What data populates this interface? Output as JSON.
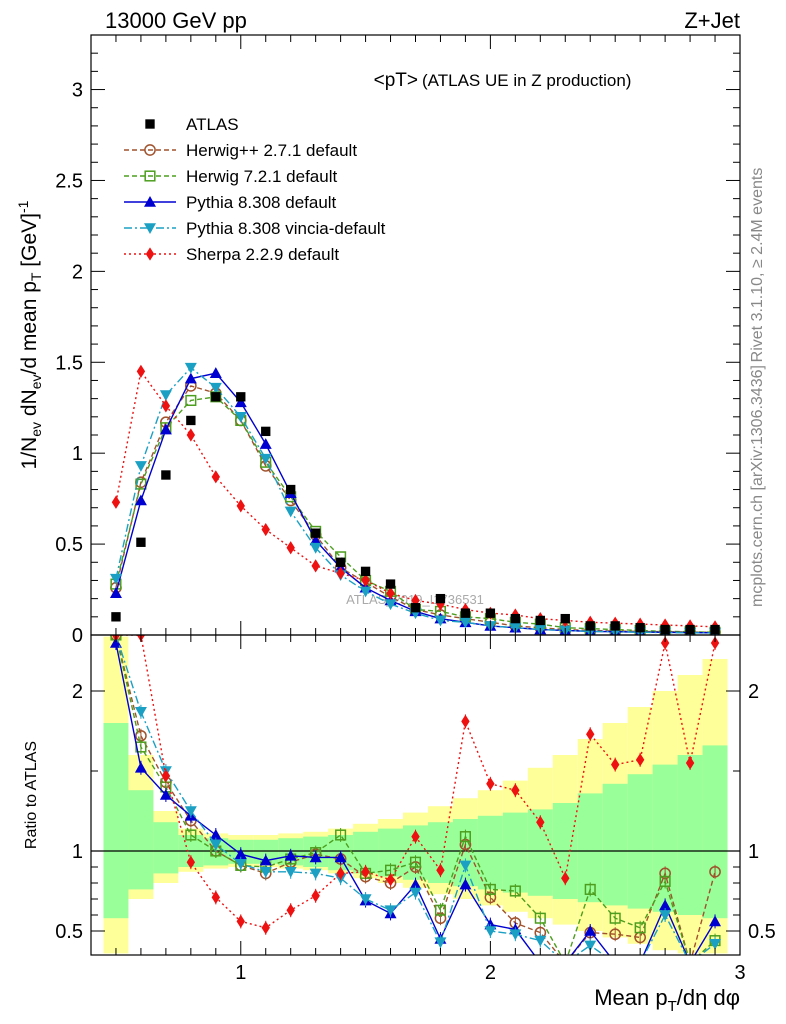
{
  "header": {
    "energy_label": "13000 GeV pp",
    "process_label": "Z+Jet"
  },
  "side": {
    "rivet_label": "Rivet 3.1.10, ≥ 2.4M events",
    "mcplots_label": "mcplots.cern.ch [arXiv:1306.3436]"
  },
  "watermark": "ATLAS_2019_I1736531",
  "chart_data": {
    "type": "line",
    "title": "<pT>",
    "subtitle": "(ATLAS UE in Z production)",
    "xlabel": "Mean p_T/dη dφ",
    "ylabel": "1/N_ev dN_ev/d mean p_T [GeV]^-1",
    "ratio_ylabel": "Ratio to ATLAS",
    "xlim": [
      0.4,
      3.0
    ],
    "ylim": [
      0,
      3.3
    ],
    "ratio_ylim": [
      0.35,
      2.35
    ],
    "x_ticks": [
      1,
      2,
      3
    ],
    "y_ticks": [
      0,
      0.5,
      1,
      1.5,
      2,
      2.5,
      3
    ],
    "ratio_ticks": [
      0.5,
      1,
      2
    ],
    "x": [
      0.5,
      0.6,
      0.7,
      0.8,
      0.9,
      1.0,
      1.1,
      1.2,
      1.3,
      1.4,
      1.5,
      1.6,
      1.7,
      1.8,
      1.9,
      2.0,
      2.1,
      2.2,
      2.3,
      2.4,
      2.5,
      2.6,
      2.7,
      2.8,
      2.9
    ],
    "data": {
      "name": "ATLAS",
      "values": [
        0.1,
        0.51,
        0.88,
        1.18,
        1.31,
        1.31,
        1.12,
        0.8,
        0.56,
        0.4,
        0.35,
        0.28,
        0.15,
        0.2,
        0.12,
        0.12,
        0.09,
        0.08,
        0.09,
        0.05,
        0.05,
        0.04,
        0.03,
        0.03,
        0.03
      ],
      "band_inner": [
        0.58,
        0.76,
        0.86,
        0.9,
        0.91,
        0.92,
        0.92,
        0.91,
        0.9,
        0.88,
        0.86,
        0.84,
        0.82,
        0.8,
        0.78,
        0.76,
        0.74,
        0.72,
        0.7,
        0.68,
        0.66,
        0.64,
        0.62,
        0.6,
        0.58
      ],
      "band_outer": [
        0.35,
        0.7,
        0.8,
        0.87,
        0.89,
        0.9,
        0.9,
        0.89,
        0.88,
        0.86,
        0.83,
        0.8,
        0.77,
        0.73,
        0.7,
        0.66,
        0.62,
        0.58,
        0.54,
        0.5,
        0.46,
        0.42,
        0.38,
        0.34,
        0.3
      ],
      "band_inner_hi": [
        1.8,
        1.38,
        1.18,
        1.1,
        1.08,
        1.07,
        1.07,
        1.08,
        1.09,
        1.1,
        1.12,
        1.14,
        1.16,
        1.18,
        1.2,
        1.22,
        1.24,
        1.26,
        1.3,
        1.36,
        1.42,
        1.48,
        1.54,
        1.6,
        1.66
      ],
      "band_outer_hi": [
        2.35,
        1.6,
        1.25,
        1.14,
        1.11,
        1.1,
        1.1,
        1.11,
        1.12,
        1.14,
        1.17,
        1.2,
        1.24,
        1.28,
        1.33,
        1.38,
        1.44,
        1.52,
        1.6,
        1.7,
        1.8,
        1.9,
        2.0,
        2.1,
        2.2
      ]
    },
    "series": [
      {
        "name": "Herwig++ 2.7.1 default",
        "color": "#a0522d",
        "dash": "5,3",
        "marker": "circle-open",
        "values": [
          0.26,
          0.84,
          1.17,
          1.37,
          1.33,
          1.18,
          0.93,
          0.74,
          0.55,
          0.37,
          0.29,
          0.21,
          0.14,
          0.11,
          0.09,
          0.07,
          0.05,
          0.04,
          0.03,
          0.025,
          0.022,
          0.02,
          0.018,
          0.016,
          0.015
        ]
      },
      {
        "name": "Herwig 7.2.1 default",
        "color": "#4d9e1e",
        "dash": "5,3",
        "marker": "square-open",
        "values": [
          0.28,
          0.83,
          1.14,
          1.29,
          1.31,
          1.18,
          0.95,
          0.76,
          0.57,
          0.43,
          0.3,
          0.24,
          0.14,
          0.13,
          0.1,
          0.09,
          0.07,
          0.06,
          0.04,
          0.035,
          0.03,
          0.025,
          0.02,
          0.018,
          0.015
        ]
      },
      {
        "name": "Pythia 8.308 default",
        "color": "#0000d0",
        "dash": "",
        "marker": "triangle-up",
        "values": [
          0.23,
          0.74,
          1.13,
          1.41,
          1.44,
          1.28,
          1.05,
          0.78,
          0.52,
          0.37,
          0.26,
          0.19,
          0.13,
          0.09,
          0.07,
          0.05,
          0.04,
          0.03,
          0.025,
          0.02,
          0.018,
          0.016,
          0.015,
          0.013,
          0.012
        ]
      },
      {
        "name": "Pythia 8.308 vincia-default",
        "color": "#1ba0c4",
        "dash": "8,3,2,3",
        "marker": "triangle-down",
        "values": [
          0.31,
          0.93,
          1.32,
          1.47,
          1.36,
          1.2,
          0.97,
          0.68,
          0.48,
          0.33,
          0.24,
          0.17,
          0.12,
          0.08,
          0.07,
          0.05,
          0.04,
          0.03,
          0.025,
          0.02,
          0.018,
          0.015,
          0.013,
          0.012,
          0.011
        ]
      },
      {
        "name": "Sherpa 2.2.9 default",
        "color": "#ee1111",
        "dash": "2,3",
        "marker": "diamond",
        "values": [
          0.73,
          1.45,
          1.26,
          1.1,
          0.87,
          0.71,
          0.58,
          0.48,
          0.38,
          0.34,
          0.3,
          0.23,
          0.19,
          0.17,
          0.14,
          0.12,
          0.11,
          0.09,
          0.08,
          0.07,
          0.065,
          0.06,
          0.055,
          0.05,
          0.045
        ]
      }
    ],
    "ratios": [
      [
        2.35,
        1.72,
        1.43,
        1.19,
        1.0,
        0.91,
        0.86,
        0.93,
        0.98,
        0.95,
        0.84,
        0.8,
        0.9,
        0.58,
        1.04,
        0.71,
        0.55,
        0.49,
        0.3,
        0.49,
        0.48,
        0.46,
        0.86,
        0.3,
        0.87
      ],
      [
        2.35,
        1.65,
        1.4,
        1.1,
        1.0,
        0.91,
        0.9,
        0.95,
        0.99,
        1.1,
        0.86,
        0.88,
        0.93,
        0.63,
        1.09,
        0.76,
        0.75,
        0.58,
        0.3,
        0.76,
        0.58,
        0.52,
        0.81,
        0.3,
        0.44
      ],
      [
        2.3,
        1.52,
        1.35,
        1.22,
        1.1,
        0.98,
        0.94,
        0.97,
        0.96,
        0.96,
        0.69,
        0.61,
        0.79,
        0.45,
        0.79,
        0.54,
        0.51,
        0.3,
        0.3,
        0.5,
        0.3,
        0.3,
        0.66,
        0.3,
        0.56
      ],
      [
        2.35,
        1.87,
        1.5,
        1.25,
        1.04,
        0.92,
        0.87,
        0.87,
        0.86,
        0.83,
        0.7,
        0.63,
        0.74,
        0.43,
        0.91,
        0.5,
        0.48,
        0.44,
        0.3,
        0.41,
        0.3,
        0.3,
        0.6,
        0.3,
        0.42
      ],
      [
        2.35,
        2.35,
        1.47,
        0.93,
        0.71,
        0.56,
        0.52,
        0.63,
        0.72,
        0.86,
        0.87,
        0.82,
        1.09,
        0.88,
        1.81,
        1.42,
        1.38,
        1.18,
        0.83,
        1.73,
        1.54,
        1.57,
        2.3,
        1.55,
        2.3
      ]
    ]
  }
}
